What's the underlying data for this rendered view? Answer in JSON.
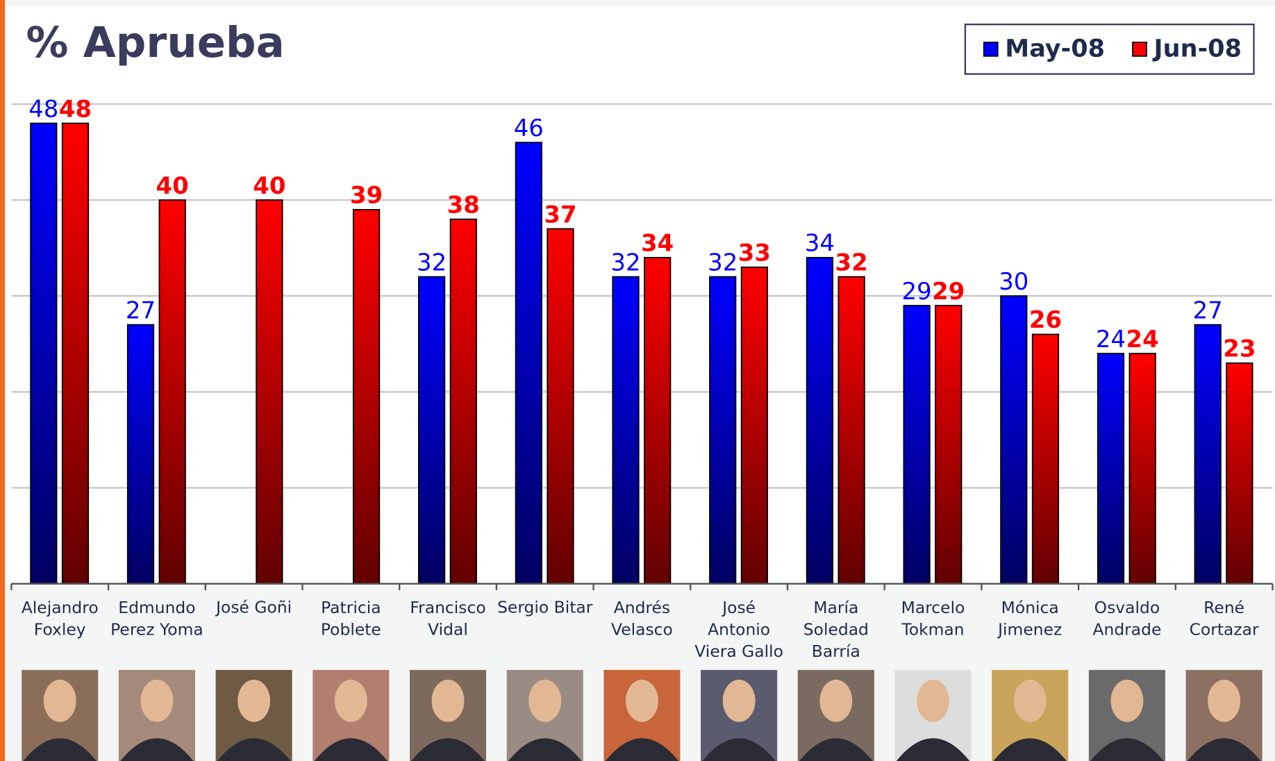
{
  "chart_data": {
    "type": "bar",
    "title": "% Aprueba",
    "categories": [
      "Alejandro\nFoxley",
      "Edmundo\nPerez Yoma",
      "José Goñi",
      "Patricia\nPoblete",
      "Francisco\nVidal",
      "Sergio Bitar",
      "Andrés\nVelasco",
      "José\nAntonio\nViera Gallo",
      "María\nSoledad\nBarría",
      "Marcelo\nTokman",
      "Mónica\nJimenez",
      "Osvaldo\nAndrade",
      "René\nCortazar"
    ],
    "series": [
      {
        "name": "May-08",
        "color": "#0000ff",
        "values": [
          48,
          27,
          null,
          null,
          32,
          46,
          32,
          32,
          34,
          29,
          30,
          24,
          27
        ]
      },
      {
        "name": "Jun-08",
        "color": "#ff0000",
        "values": [
          48,
          40,
          40,
          39,
          38,
          37,
          34,
          33,
          32,
          29,
          26,
          24,
          23
        ]
      }
    ],
    "ylim": [
      0,
      50
    ],
    "yticks": [
      0,
      10,
      20,
      30,
      40,
      50
    ],
    "grid": true,
    "legend": "top-right"
  }
}
